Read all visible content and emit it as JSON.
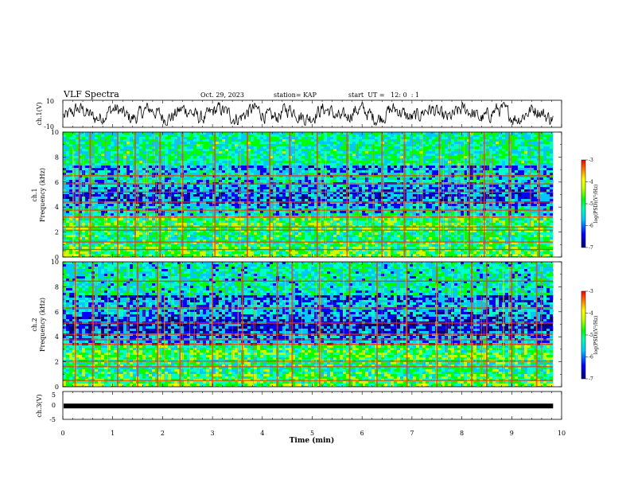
{
  "header": {
    "title": "VLF Spectra",
    "date": "Oct. 29, 2023",
    "station": "station= KAP",
    "start": "start  UT =   12: 0  : 1"
  },
  "chart_data": [
    {
      "type": "line",
      "panel": "waveform-ch1",
      "ylabel": "ch.1(V)",
      "ylim": [
        -10,
        10
      ],
      "yticks": [
        -10,
        10
      ],
      "x_range_min": [
        0,
        9.83
      ],
      "trace": "dense noisy oscillation roughly between -8 and +8 V"
    },
    {
      "type": "heatmap",
      "panel": "spectrogram-ch1",
      "ylabel": "ch.1\nFrequency (kHz)",
      "ylim": [
        0,
        10
      ],
      "yticks": [
        0,
        2,
        4,
        6,
        8,
        10
      ],
      "x_range_min": [
        0,
        9.83
      ],
      "colorbar": {
        "label": "log(PSD)(V²/Hz)",
        "range": [
          -7,
          -3
        ],
        "ticks": [
          -3,
          -4,
          -5,
          -6,
          -7
        ]
      },
      "horizontal_lines_khz": [
        0.6,
        1.2,
        2.15,
        2.4,
        3.2,
        3.75,
        4.4,
        5.2,
        5.85,
        6.5
      ],
      "vertical_burst_times_min": [
        0.33,
        0.55,
        1.1,
        1.45,
        1.95,
        2.4,
        3.05,
        3.7,
        4.15,
        4.55,
        5.1,
        5.7,
        6.4,
        6.85,
        7.55,
        8.15,
        8.45,
        8.95,
        9.55
      ]
    },
    {
      "type": "heatmap",
      "panel": "spectrogram-ch2",
      "ylabel": "ch.2\nFrequency (kHz)",
      "ylim": [
        0,
        10
      ],
      "yticks": [
        0,
        2,
        4,
        6,
        8,
        10
      ],
      "x_range_min": [
        0,
        9.83
      ],
      "colorbar": {
        "label": "log(PSD)(V²/Hz)",
        "range": [
          -7,
          -3
        ],
        "ticks": [
          -3,
          -4,
          -5,
          -6,
          -7
        ]
      },
      "horizontal_lines_khz": [
        0.5,
        1.6,
        2.05,
        3.4,
        3.75,
        4.2,
        5.1,
        6.3,
        8.45
      ],
      "vertical_burst_times_min": [
        0.25,
        0.6,
        1.1,
        1.5,
        1.9,
        2.35,
        3.0,
        3.6,
        4.3,
        4.6,
        5.15,
        5.75,
        6.3,
        6.9,
        7.5,
        8.2,
        8.5,
        9.0,
        9.5
      ]
    },
    {
      "type": "line",
      "panel": "waveform-ch3",
      "ylabel": "ch.3(V)",
      "ylim": [
        -5,
        5
      ],
      "yticks": [
        -5,
        0,
        5
      ],
      "x_range_min": [
        0,
        9.83
      ],
      "trace": "flat thick band near -0.2 V"
    }
  ],
  "xaxis": {
    "label": "Time (min)",
    "range": [
      0,
      10
    ],
    "ticks": [
      "0",
      "1",
      "2",
      "3",
      "4",
      "5",
      "6",
      "7",
      "8",
      "9",
      "10"
    ]
  },
  "colorscale": [
    "#00007a",
    "#0000ff",
    "#00c8ff",
    "#00ffc8",
    "#00ff00",
    "#c8ff00",
    "#ffff00",
    "#ff9900",
    "#ff0000"
  ]
}
